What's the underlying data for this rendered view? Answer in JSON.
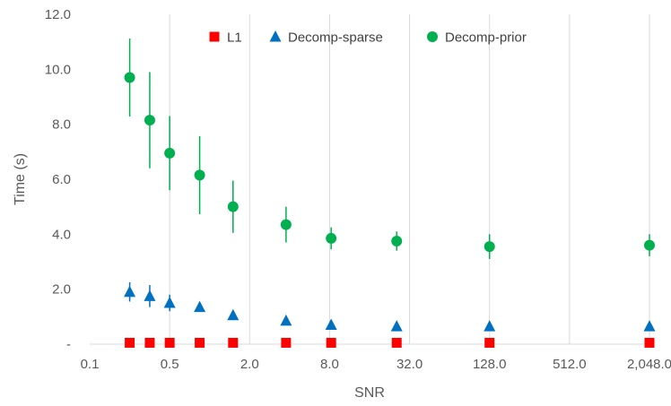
{
  "chart_data": {
    "type": "scatter",
    "title": "",
    "xlabel": "SNR",
    "ylabel": "Time (s)",
    "x_scale": "log2",
    "xlim": [
      0.125,
      2048
    ],
    "ylim": [
      0,
      12
    ],
    "x_ticks": [
      {
        "value": 0.125,
        "label": "0.1"
      },
      {
        "value": 0.5,
        "label": "0.5"
      },
      {
        "value": 2,
        "label": "2.0"
      },
      {
        "value": 8,
        "label": "8.0"
      },
      {
        "value": 32,
        "label": "32.0"
      },
      {
        "value": 128,
        "label": "128.0"
      },
      {
        "value": 512,
        "label": "512.0"
      },
      {
        "value": 2048,
        "label": "2,048.0"
      }
    ],
    "y_ticks": [
      {
        "value": 0,
        "label": "-"
      },
      {
        "value": 2,
        "label": "2.0"
      },
      {
        "value": 4,
        "label": "4.0"
      },
      {
        "value": 6,
        "label": "6.0"
      },
      {
        "value": 8,
        "label": "8.0"
      },
      {
        "value": 10,
        "label": "10.0"
      },
      {
        "value": 12,
        "label": "12.0"
      }
    ],
    "grid": {
      "vertical": true,
      "horizontal": false
    },
    "legend_position": "top",
    "series": [
      {
        "name": "L1",
        "marker": "square",
        "color": "#ff0000",
        "points": [
          {
            "x": 0.25,
            "y": 0.05,
            "err": 0
          },
          {
            "x": 0.354,
            "y": 0.05,
            "err": 0
          },
          {
            "x": 0.5,
            "y": 0.05,
            "err": 0
          },
          {
            "x": 0.841,
            "y": 0.05,
            "err": 0
          },
          {
            "x": 1.5,
            "y": 0.05,
            "err": 0
          },
          {
            "x": 3.76,
            "y": 0.05,
            "err": 0
          },
          {
            "x": 8.22,
            "y": 0.05,
            "err": 0
          },
          {
            "x": 25.6,
            "y": 0.05,
            "err": 0
          },
          {
            "x": 128,
            "y": 0.05,
            "err": 0
          },
          {
            "x": 2048,
            "y": 0.05,
            "err": 0
          }
        ]
      },
      {
        "name": "Decomp-sparse",
        "marker": "triangle",
        "color": "#0070c0",
        "points": [
          {
            "x": 0.25,
            "y": 1.9,
            "err": 0.35
          },
          {
            "x": 0.354,
            "y": 1.75,
            "err": 0.4
          },
          {
            "x": 0.5,
            "y": 1.5,
            "err": 0.3
          },
          {
            "x": 0.841,
            "y": 1.35,
            "err": 0.1
          },
          {
            "x": 1.5,
            "y": 1.05,
            "err": 0.1
          },
          {
            "x": 3.76,
            "y": 0.85,
            "err": 0.08
          },
          {
            "x": 8.22,
            "y": 0.7,
            "err": 0.05
          },
          {
            "x": 25.6,
            "y": 0.65,
            "err": 0.05
          },
          {
            "x": 128,
            "y": 0.65,
            "err": 0.05
          },
          {
            "x": 2048,
            "y": 0.65,
            "err": 0.05
          }
        ]
      },
      {
        "name": "Decomp-prior",
        "marker": "circle",
        "color": "#00b050",
        "points": [
          {
            "x": 0.25,
            "y": 9.7,
            "err": 1.42
          },
          {
            "x": 0.354,
            "y": 8.15,
            "err": 1.75
          },
          {
            "x": 0.5,
            "y": 6.95,
            "err": 1.35
          },
          {
            "x": 0.841,
            "y": 6.15,
            "err": 1.42
          },
          {
            "x": 1.5,
            "y": 5.0,
            "err": 0.95
          },
          {
            "x": 3.76,
            "y": 4.35,
            "err": 0.65
          },
          {
            "x": 8.22,
            "y": 3.85,
            "err": 0.4
          },
          {
            "x": 25.6,
            "y": 3.75,
            "err": 0.35
          },
          {
            "x": 128,
            "y": 3.55,
            "err": 0.45
          },
          {
            "x": 2048,
            "y": 3.6,
            "err": 0.4
          }
        ]
      }
    ]
  }
}
